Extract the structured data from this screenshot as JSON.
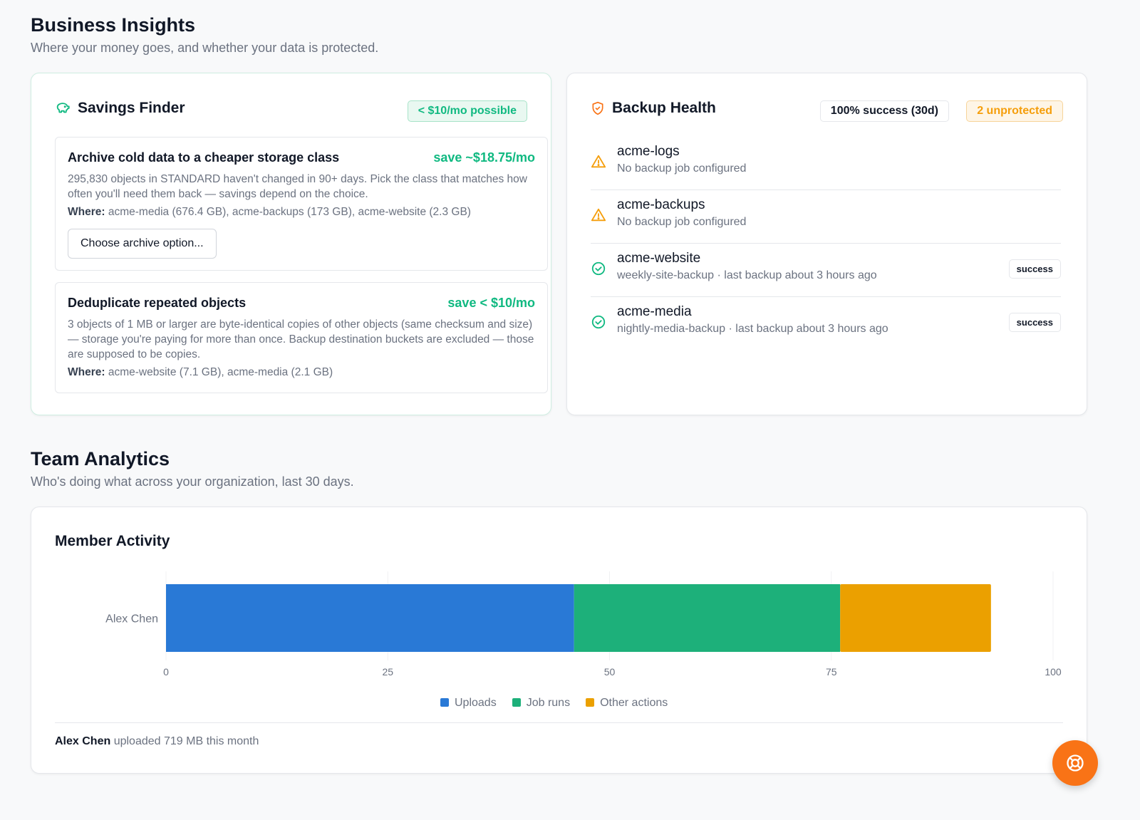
{
  "business": {
    "title": "Business Insights",
    "subtitle": "Where your money goes, and whether your data is protected."
  },
  "savings": {
    "title": "Savings Finder",
    "badge": "< $10/mo possible",
    "opportunities": [
      {
        "title": "Archive cold data to a cheaper storage class",
        "save": "save ~$18.75/mo",
        "desc": "295,830 objects in STANDARD haven't changed in 90+ days. Pick the class that matches how often you'll need them back — savings depend on the choice.",
        "where_label": "Where:",
        "where": "acme-media (676.4 GB), acme-backups (173 GB), acme-website (2.3 GB)",
        "action": "Choose archive option..."
      },
      {
        "title": "Deduplicate repeated objects",
        "save": "save < $10/mo",
        "desc": "3 objects of 1 MB or larger are byte-identical copies of other objects (same checksum and size) — storage you're paying for more than once. Backup destination buckets are excluded — those are supposed to be copies.",
        "where_label": "Where:",
        "where": "acme-website (7.1 GB), acme-media (2.1 GB)"
      }
    ]
  },
  "backup": {
    "title": "Backup Health",
    "success_badge": "100% success (30d)",
    "unprotected_badge": "2 unprotected",
    "buckets": [
      {
        "name": "acme-logs",
        "sub": "No backup job configured",
        "icon": "warning-icon"
      },
      {
        "name": "acme-backups",
        "sub": "No backup job configured",
        "icon": "warning-icon"
      },
      {
        "name": "acme-website",
        "sub": "weekly-site-backup · last backup about 3 hours ago",
        "icon": "check-circle-icon",
        "status": "success"
      },
      {
        "name": "acme-media",
        "sub": "nightly-media-backup · last backup about 3 hours ago",
        "icon": "check-circle-icon",
        "status": "success"
      }
    ]
  },
  "team": {
    "title": "Team Analytics",
    "subtitle": "Who's doing what across your organization, last 30 days."
  },
  "activity": {
    "title": "Member Activity",
    "footer_name": "Alex Chen",
    "footer_text": "uploaded 719 MB this month"
  },
  "chart_data": {
    "type": "bar",
    "orientation": "horizontal",
    "stacked": true,
    "categories": [
      "Alex Chen"
    ],
    "series": [
      {
        "name": "Uploads",
        "values": [
          46
        ],
        "color": "#2979d6"
      },
      {
        "name": "Job runs",
        "values": [
          30
        ],
        "color": "#1db07a"
      },
      {
        "name": "Other actions",
        "values": [
          17
        ],
        "color": "#eba000"
      }
    ],
    "xlim": [
      0,
      100
    ],
    "xticks": [
      "0",
      "25",
      "50",
      "75",
      "100"
    ],
    "legend": "bottom"
  },
  "colors": {
    "accent_green": "#10b981",
    "accent_orange": "#f59e0b",
    "fab": "#f97316"
  },
  "icons": {
    "savings": "piggy-bank-icon",
    "backup": "shield-icon",
    "fab": "lifebuoy-icon"
  }
}
